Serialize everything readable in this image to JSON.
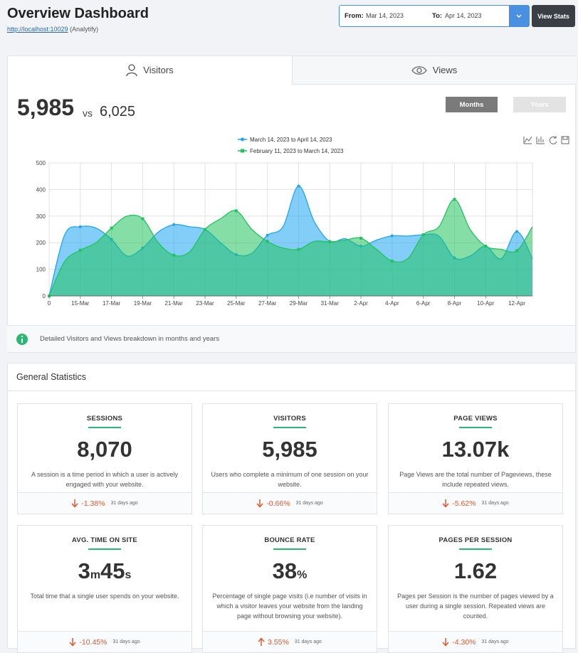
{
  "header": {
    "title": "Overview Dashboard",
    "url": "http://localhost:10029",
    "site": "(Analytify)"
  },
  "date_range": {
    "from_label": "From:",
    "from": "Mar 14, 2023",
    "to_label": "To:",
    "to": "Apr 14, 2023",
    "button": "View Stats"
  },
  "tabs": [
    "Visitors",
    "Views"
  ],
  "summary": {
    "current": "5,985",
    "separator": "vs",
    "previous": "6,025",
    "periods": [
      "Months",
      "Years"
    ]
  },
  "chart_data": {
    "type": "area",
    "categories": [
      "0",
      null,
      "15-Mar",
      null,
      "17-Mar",
      null,
      "19-Mar",
      null,
      "21-Mar",
      null,
      "23-Mar",
      null,
      "25-Mar",
      null,
      "27-Mar",
      null,
      "29-Mar",
      null,
      "31-Mar",
      null,
      "2-Apr",
      null,
      "4-Apr",
      null,
      "6-Apr",
      null,
      "8-Apr",
      null,
      "10-Apr",
      null,
      "12-Apr",
      null
    ],
    "series": [
      {
        "name": "March 14, 2023 to April 14, 2023",
        "color": "#1ea5f3",
        "values": [
          0,
          230,
          260,
          255,
          213,
          150,
          180,
          240,
          268,
          260,
          250,
          200,
          155,
          160,
          228,
          260,
          413,
          280,
          205,
          215,
          187,
          210,
          226,
          225,
          230,
          225,
          143,
          150,
          187,
          140,
          242,
          140
        ]
      },
      {
        "name": "February 11, 2023 to March 14, 2023",
        "color": "#22c35e",
        "values": [
          0,
          130,
          172,
          200,
          255,
          300,
          290,
          200,
          153,
          165,
          250,
          290,
          320,
          250,
          205,
          180,
          175,
          205,
          203,
          210,
          217,
          175,
          131,
          140,
          230,
          260,
          363,
          250,
          187,
          175,
          170,
          260
        ]
      }
    ],
    "ylim": [
      0,
      500
    ],
    "yticks": [
      0,
      100,
      200,
      300,
      400,
      500
    ],
    "grid": true
  },
  "info": "Detailed Visitors and Views breakdown in months and years",
  "stats": {
    "title": "General Statistics",
    "cards": [
      {
        "title": "SESSIONS",
        "value_parts": [
          "8,070"
        ],
        "description": "A session is a time period in which a user is actively engaged with your website.",
        "change": "-1.38%",
        "direction": "down",
        "ago": "31 days ago"
      },
      {
        "title": "VISITORS",
        "value_parts": [
          "5,985"
        ],
        "description": "Users who complete a minimum of one session on your website.",
        "change": "-0.66%",
        "direction": "down",
        "ago": "31 days ago"
      },
      {
        "title": "PAGE VIEWS",
        "value_parts": [
          "13.07k"
        ],
        "description": "Page Views are the total number of Pageviews, these include repeated views.",
        "change": "-5.62%",
        "direction": "down",
        "ago": "31 days ago"
      },
      {
        "title": "AVG. TIME ON SITE",
        "value_parts": [
          "3",
          "m",
          "45",
          "s"
        ],
        "description": "Total time that a single user spends on your website.",
        "change": "-10.45%",
        "direction": "down",
        "ago": "31 days ago"
      },
      {
        "title": "BOUNCE RATE",
        "value_parts": [
          "38",
          "%"
        ],
        "description": "Percentage of single page visits (i.e number of visits in which a visitor leaves your website from the landing page without browsing your website).",
        "change": "3.55%",
        "direction": "up",
        "ago": "31 days ago"
      },
      {
        "title": "PAGES PER SESSION",
        "value_parts": [
          "1.62"
        ],
        "description": "Pages per Session is the number of pages viewed by a user during a single session. Repeated views are counted.",
        "change": "-4.30%",
        "direction": "down",
        "ago": "31 days ago"
      }
    ]
  }
}
